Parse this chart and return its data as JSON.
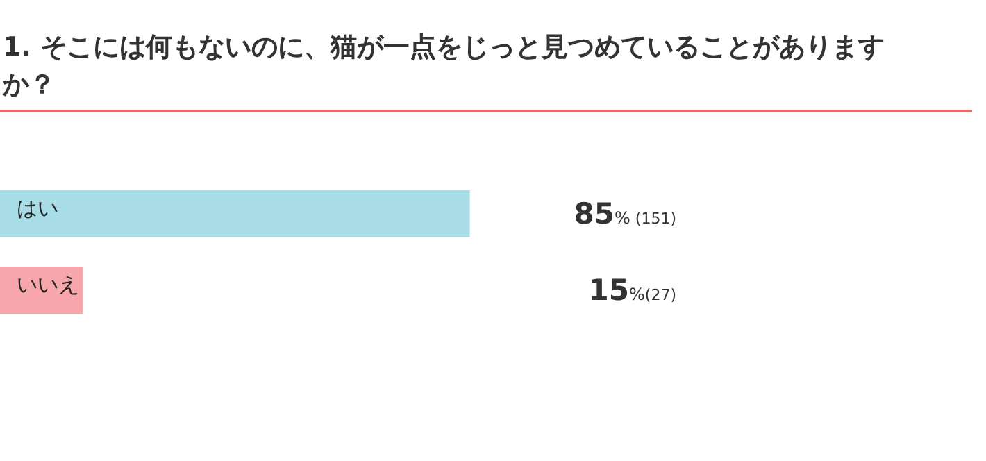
{
  "chart_data": {
    "type": "bar",
    "orientation": "horizontal",
    "title": "1. そこには何もないのに、猫が一点をじっと見つめていることがありますか？",
    "categories": [
      "はい",
      "いいえ"
    ],
    "values": [
      85,
      15
    ],
    "colors": [
      "#a8dce6",
      "#f7a6ab"
    ],
    "value_labels": [
      "85% (151)",
      "15%(27)"
    ]
  }
}
